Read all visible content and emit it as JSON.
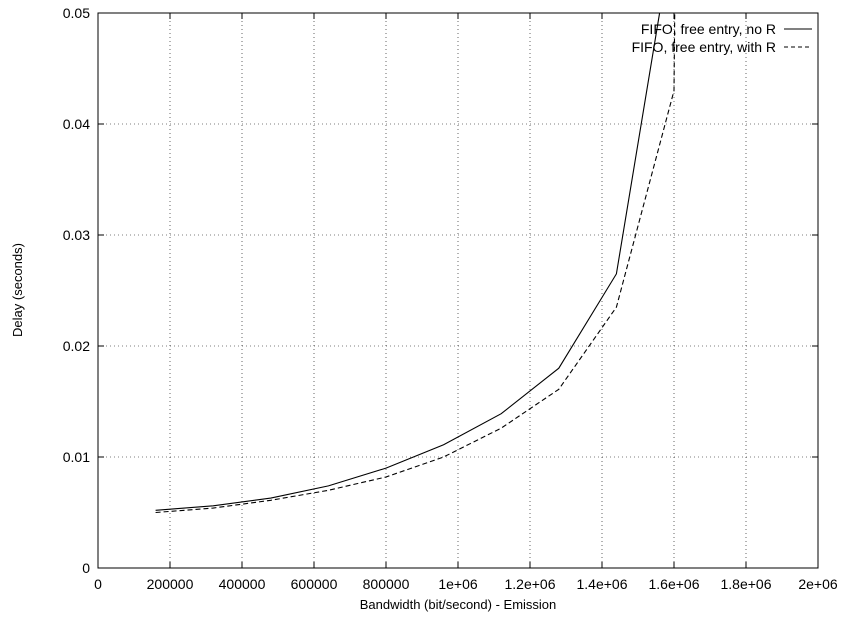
{
  "chart_data": {
    "type": "line",
    "xlabel": "Bandwidth (bit/second) - Emission",
    "ylabel": "Delay (seconds)",
    "xlim": [
      0,
      2000000
    ],
    "ylim": [
      0,
      0.05
    ],
    "x_ticks": [
      0,
      200000,
      400000,
      600000,
      800000,
      1000000,
      1200000,
      1400000,
      1600000,
      1800000,
      2000000
    ],
    "x_tick_labels": [
      "0",
      "200000",
      "400000",
      "600000",
      "800000",
      "1e+06",
      "1.2e+06",
      "1.4e+06",
      "1.6e+06",
      "1.8e+06",
      "2e+06"
    ],
    "y_ticks": [
      0,
      0.01,
      0.02,
      0.03,
      0.04,
      0.05
    ],
    "y_tick_labels": [
      "0",
      "0.01",
      "0.02",
      "0.03",
      "0.04",
      "0.05"
    ],
    "grid": true,
    "legend_position": "top-right",
    "series": [
      {
        "name": "FIFO, free entry, no R",
        "style": "solid",
        "color": "#000000",
        "x": [
          160000,
          320000,
          480000,
          640000,
          800000,
          960000,
          1120000,
          1280000,
          1440000,
          1560000
        ],
        "y": [
          0.0052,
          0.0056,
          0.0063,
          0.0074,
          0.009,
          0.0111,
          0.0139,
          0.018,
          0.0265,
          0.05
        ]
      },
      {
        "name": "FIFO, free entry, with R",
        "style": "dashed",
        "color": "#000000",
        "x": [
          160000,
          320000,
          480000,
          640000,
          800000,
          960000,
          1120000,
          1280000,
          1440000,
          1600000,
          1602000,
          1605000
        ],
        "y": [
          0.005,
          0.0054,
          0.0061,
          0.007,
          0.0082,
          0.01,
          0.0126,
          0.0161,
          0.0235,
          0.043,
          0.05,
          0.05
        ]
      }
    ]
  }
}
